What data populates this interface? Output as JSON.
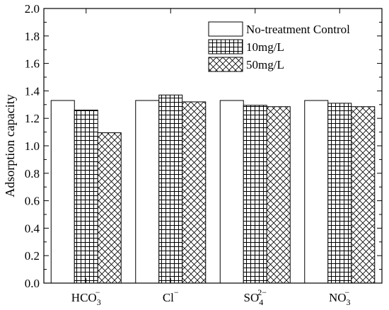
{
  "chart_data": {
    "type": "bar",
    "categories": [
      {
        "base": "HCO",
        "sub": "3",
        "sup": "−"
      },
      {
        "base": "Cl",
        "sub": "",
        "sup": "−"
      },
      {
        "base": "SO",
        "sub": "4",
        "sup": "2−"
      },
      {
        "base": "NO",
        "sub": "3",
        "sup": "−"
      }
    ],
    "series": [
      {
        "name": "No-treatment Control",
        "pattern": "solid",
        "values": [
          1.33,
          1.33,
          1.33,
          1.33
        ]
      },
      {
        "name": "10mg/L",
        "pattern": "grid",
        "values": [
          1.26,
          1.37,
          1.295,
          1.31
        ]
      },
      {
        "name": "50mg/L",
        "pattern": "crosshatch",
        "values": [
          1.095,
          1.32,
          1.285,
          1.285
        ]
      }
    ],
    "ylabel": "Adsorption capacity",
    "xlabel": "",
    "ylim": [
      0.0,
      2.0
    ],
    "yticks": [
      "0.0",
      "0.2",
      "0.4",
      "0.6",
      "0.8",
      "1.0",
      "1.2",
      "1.4",
      "1.6",
      "1.8",
      "2.0"
    ],
    "grid": false,
    "legend_position": "top-right",
    "colors": {
      "fill": "#ffffff",
      "stroke": "#000000"
    }
  }
}
